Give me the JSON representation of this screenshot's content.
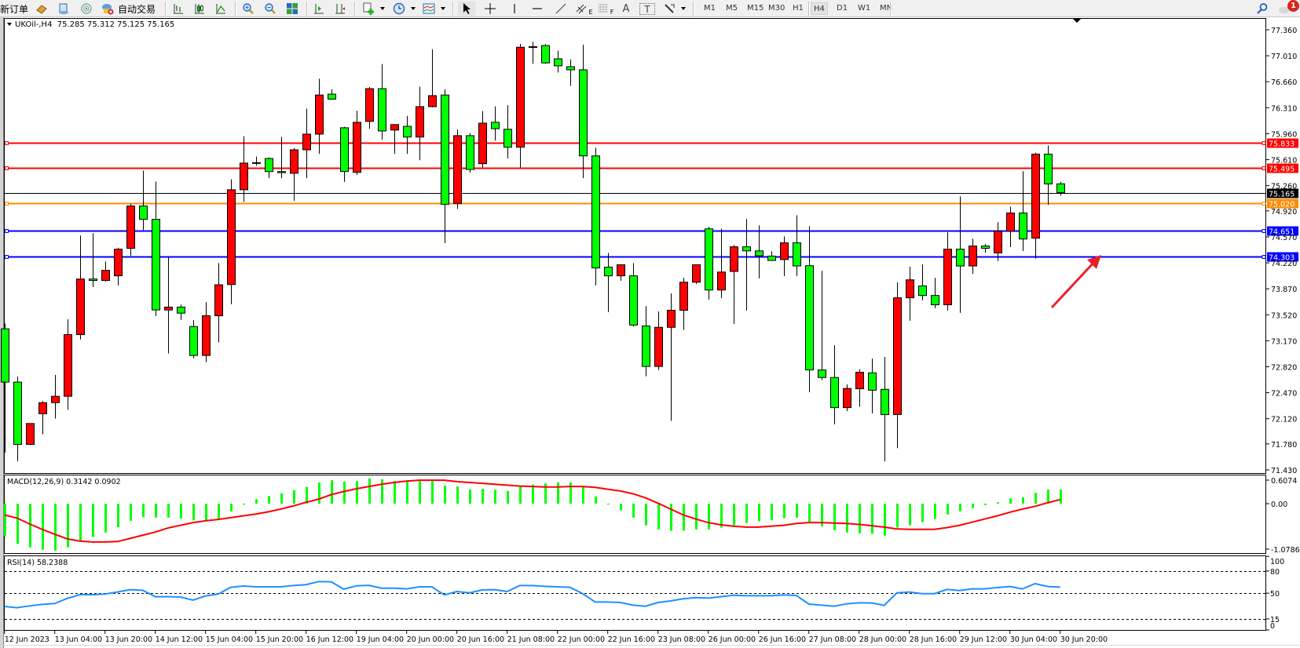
{
  "toolbar": {
    "new_order_label": "新订单",
    "autotrading_label": "自动交易",
    "timeframes": [
      "M1",
      "M5",
      "M15",
      "M30",
      "H1",
      "H4",
      "D1",
      "W1",
      "MN"
    ],
    "selected_timeframe": "H4",
    "notification_count": "1",
    "tools": {
      "equidistant_channel_suffix": "E",
      "fibonacci_suffix": "F",
      "text_tool": "A",
      "label_tool": "T"
    }
  },
  "chart": {
    "symbol_header": "UKOil-,H4  75.285 75.312 75.125 75.165",
    "colors": {
      "bull": "#ff0000",
      "bear": "#00ff00",
      "wick": "#000000",
      "macd_hist": "#00ff00",
      "macd_signal": "#ff0000",
      "rsi": "#1e90ff"
    },
    "price_axis": [
      "77.360",
      "77.010",
      "76.660",
      "76.310",
      "75.960",
      "75.610",
      "75.260",
      "74.920",
      "74.570",
      "74.220",
      "73.870",
      "73.520",
      "73.170",
      "72.820",
      "72.470",
      "72.120",
      "71.780",
      "71.430"
    ],
    "price_range": [
      71.43,
      77.36
    ],
    "horizontal_lines": [
      {
        "price": "75.833",
        "color": "#ff0000"
      },
      {
        "price": "75.495",
        "color": "#ff0000"
      },
      {
        "price": "75.165",
        "color": "#000000",
        "kind": "bid"
      },
      {
        "price": "75.020",
        "color": "#ff8c00"
      },
      {
        "price": "74.651",
        "color": "#0000ff"
      },
      {
        "price": "74.303",
        "color": "#0000ff"
      }
    ],
    "time_axis": [
      "12 Jun 2023",
      "13 Jun 04:00",
      "13 Jun 20:00",
      "14 Jun 12:00",
      "15 Jun 04:00",
      "15 Jun 20:00",
      "16 Jun 12:00",
      "19 Jun 04:00",
      "20 Jun 00:00",
      "20 Jun 16:00",
      "21 Jun 08:00",
      "22 Jun 00:00",
      "22 Jun 16:00",
      "23 Jun 08:00",
      "26 Jun 00:00",
      "26 Jun 16:00",
      "27 Jun 08:00",
      "28 Jun 00:00",
      "28 Jun 16:00",
      "29 Jun 12:00",
      "30 Jun 04:00",
      "30 Jun 20:00"
    ],
    "annotation": {
      "type": "arrow",
      "color": "#e8202a",
      "direction": "up-right"
    }
  },
  "chart_data": [
    {
      "type": "candlestick",
      "title": "UKOil-,H4",
      "ohlc_fields": [
        "open",
        "high",
        "low",
        "close"
      ],
      "ylim": [
        71.43,
        77.36
      ],
      "ohlc": [
        [
          73.331,
          73.401,
          71.664,
          72.613
        ],
        [
          72.613,
          72.687,
          71.547,
          71.774
        ],
        [
          71.774,
          72.055,
          71.763,
          72.055
        ],
        [
          72.187,
          72.355,
          71.91,
          72.336
        ],
        [
          72.336,
          72.71,
          72.121,
          72.422
        ],
        [
          72.422,
          73.46,
          72.238,
          73.253
        ],
        [
          73.253,
          74.588,
          73.187,
          74.002
        ],
        [
          74.002,
          74.619,
          73.893,
          73.983
        ],
        [
          73.983,
          74.24,
          73.967,
          74.119
        ],
        [
          74.045,
          74.424,
          73.917,
          74.404
        ],
        [
          74.416,
          75.013,
          74.315,
          74.986
        ],
        [
          74.986,
          75.462,
          74.662,
          74.806
        ],
        [
          74.806,
          75.314,
          73.503,
          73.585
        ],
        [
          73.585,
          74.299,
          72.999,
          73.624
        ],
        [
          73.624,
          73.655,
          73.452,
          73.542
        ],
        [
          73.362,
          73.448,
          72.933,
          72.972
        ],
        [
          72.972,
          73.69,
          72.882,
          73.507
        ],
        [
          73.507,
          74.217,
          73.148,
          73.924
        ],
        [
          73.928,
          75.345,
          73.663,
          75.205
        ],
        [
          75.205,
          75.927,
          75.041,
          75.564
        ],
        [
          75.566,
          75.653,
          75.529,
          75.57
        ],
        [
          75.626,
          75.642,
          75.361,
          75.45
        ],
        [
          75.45,
          75.915,
          75.361,
          75.435
        ],
        [
          75.427,
          75.767,
          75.056,
          75.743
        ],
        [
          75.743,
          76.297,
          75.361,
          75.954
        ],
        [
          75.954,
          76.7,
          75.689,
          76.481
        ],
        [
          76.493,
          76.559,
          76.418,
          76.426
        ],
        [
          76.04,
          76.055,
          75.31,
          75.45
        ],
        [
          75.439,
          76.27,
          75.404,
          76.114
        ],
        [
          76.126,
          76.59,
          76.028,
          76.567
        ],
        [
          76.567,
          76.899,
          75.88,
          75.997
        ],
        [
          76.009,
          76.083,
          75.689,
          76.083
        ],
        [
          76.059,
          76.2,
          75.689,
          75.915
        ],
        [
          75.915,
          76.594,
          75.603,
          76.325
        ],
        [
          76.325,
          77.098,
          76.313,
          76.473
        ],
        [
          76.481,
          76.559,
          74.486,
          75.009
        ],
        [
          75.021,
          76.013,
          74.947,
          75.934
        ],
        [
          75.934,
          75.97,
          75.435,
          75.478
        ],
        [
          75.556,
          76.266,
          75.505,
          76.102
        ],
        [
          76.114,
          76.329,
          75.868,
          76.028
        ],
        [
          76.02,
          76.344,
          75.626,
          75.778
        ],
        [
          75.778,
          77.168,
          75.505,
          77.125
        ],
        [
          77.13,
          77.199,
          76.902,
          77.133
        ],
        [
          77.148,
          77.168,
          76.902,
          76.914
        ],
        [
          76.969,
          77.078,
          76.785,
          76.875
        ],
        [
          76.863,
          76.961,
          76.606,
          76.821
        ],
        [
          76.821,
          77.16,
          75.361,
          75.661
        ],
        [
          75.661,
          75.771,
          73.917,
          74.151
        ],
        [
          74.162,
          74.354,
          73.557,
          74.045
        ],
        [
          74.045,
          74.194,
          73.979,
          74.194
        ],
        [
          74.045,
          74.217,
          73.362,
          73.382
        ],
        [
          73.37,
          73.636,
          72.691,
          72.824
        ],
        [
          72.824,
          73.565,
          72.777,
          73.351
        ],
        [
          73.351,
          73.807,
          72.09,
          73.581
        ],
        [
          73.581,
          74.018,
          73.315,
          73.959
        ],
        [
          73.959,
          74.194,
          73.936,
          74.194
        ],
        [
          74.678,
          74.705,
          73.725,
          73.854
        ],
        [
          73.854,
          74.682,
          73.745,
          74.096
        ],
        [
          74.104,
          74.459,
          73.397,
          74.436
        ],
        [
          74.436,
          74.81,
          73.577,
          74.381
        ],
        [
          74.381,
          74.725,
          74.01,
          74.315
        ],
        [
          74.311,
          74.377,
          74.244,
          74.252
        ],
        [
          74.264,
          74.576,
          74.041,
          74.49
        ],
        [
          74.49,
          74.861,
          74.041,
          74.178
        ],
        [
          74.182,
          74.713,
          72.476,
          72.777
        ],
        [
          72.777,
          74.112,
          72.64,
          72.675
        ],
        [
          72.675,
          73.109,
          72.043,
          72.269
        ],
        [
          72.269,
          72.582,
          72.223,
          72.527
        ],
        [
          72.523,
          72.785,
          72.281,
          72.746
        ],
        [
          72.738,
          72.929,
          72.191,
          72.504
        ],
        [
          72.515,
          72.952,
          71.543,
          72.176
        ],
        [
          72.176,
          73.956,
          71.723,
          73.749
        ],
        [
          73.749,
          74.166,
          73.44,
          73.991
        ],
        [
          73.909,
          74.198,
          73.714,
          73.78
        ],
        [
          73.78,
          74.018,
          73.608,
          73.655
        ],
        [
          73.655,
          74.631,
          73.577,
          74.404
        ],
        [
          74.404,
          75.115,
          73.546,
          74.178
        ],
        [
          74.178,
          74.545,
          74.073,
          74.447
        ],
        [
          74.447,
          74.471,
          74.358,
          74.416
        ],
        [
          74.354,
          74.767,
          74.244,
          74.646
        ],
        [
          74.646,
          74.978,
          74.432,
          74.892
        ],
        [
          74.892,
          75.454,
          74.381,
          74.541
        ],
        [
          74.553,
          75.704,
          74.276,
          75.685
        ],
        [
          75.685,
          75.802,
          75.002,
          75.283
        ],
        [
          75.285,
          75.312,
          75.125,
          75.165
        ]
      ]
    },
    {
      "type": "bar+line",
      "title": "MACD(12,26,9) 0.3142 0.0902",
      "axis_labels": [
        "0.6074",
        "0.00",
        "-1.0786"
      ],
      "ylim": [
        -1.0786,
        0.6074
      ],
      "histogram": [
        -0.71,
        -0.89,
        -0.97,
        -1.02,
        -1.04,
        -0.97,
        -0.83,
        -0.74,
        -0.64,
        -0.52,
        -0.38,
        -0.3,
        -0.31,
        -0.31,
        -0.33,
        -0.37,
        -0.37,
        -0.34,
        -0.17,
        -0.02,
        0.1,
        0.17,
        0.23,
        0.3,
        0.37,
        0.47,
        0.52,
        0.49,
        0.5,
        0.56,
        0.54,
        0.5,
        0.5,
        0.5,
        0.5,
        0.4,
        0.38,
        0.31,
        0.33,
        0.31,
        0.28,
        0.38,
        0.42,
        0.45,
        0.47,
        0.47,
        0.37,
        0.16,
        -0.02,
        -0.15,
        -0.31,
        -0.48,
        -0.57,
        -0.6,
        -0.6,
        -0.57,
        -0.57,
        -0.53,
        -0.48,
        -0.43,
        -0.39,
        -0.37,
        -0.32,
        -0.31,
        -0.43,
        -0.5,
        -0.59,
        -0.64,
        -0.66,
        -0.67,
        -0.71,
        -0.53,
        -0.48,
        -0.41,
        -0.34,
        -0.24,
        -0.17,
        -0.1,
        -0.03,
        0.03,
        0.12,
        0.14,
        0.24,
        0.31,
        0.3142
      ],
      "signal": [
        -0.25,
        -0.32,
        -0.45,
        -0.57,
        -0.68,
        -0.78,
        -0.83,
        -0.85,
        -0.85,
        -0.84,
        -0.77,
        -0.7,
        -0.63,
        -0.54,
        -0.48,
        -0.42,
        -0.38,
        -0.35,
        -0.31,
        -0.27,
        -0.23,
        -0.18,
        -0.12,
        -0.05,
        0.03,
        0.1,
        0.2,
        0.27,
        0.33,
        0.38,
        0.43,
        0.47,
        0.5,
        0.52,
        0.52,
        0.52,
        0.49,
        0.47,
        0.45,
        0.43,
        0.41,
        0.39,
        0.38,
        0.37,
        0.37,
        0.38,
        0.38,
        0.36,
        0.32,
        0.28,
        0.22,
        0.13,
        0.01,
        -0.12,
        -0.25,
        -0.34,
        -0.42,
        -0.47,
        -0.5,
        -0.52,
        -0.52,
        -0.5,
        -0.48,
        -0.44,
        -0.42,
        -0.42,
        -0.43,
        -0.44,
        -0.46,
        -0.49,
        -0.52,
        -0.56,
        -0.57,
        -0.57,
        -0.57,
        -0.53,
        -0.48,
        -0.41,
        -0.34,
        -0.27,
        -0.19,
        -0.12,
        -0.06,
        0.02,
        0.0902
      ]
    },
    {
      "type": "line",
      "title": "RSI(14) 58.2388",
      "axis_labels": [
        "100",
        "80",
        "50",
        "15",
        "0"
      ],
      "levels": [
        80,
        50,
        15
      ],
      "ylim": [
        0,
        100
      ],
      "values": [
        32.0,
        30.2,
        32.7,
        34.8,
        35.9,
        42.9,
        47.9,
        47.9,
        48.7,
        51.5,
        54.7,
        54.0,
        45.1,
        45.1,
        44.7,
        40.5,
        46.2,
        48.7,
        57.9,
        59.7,
        58.6,
        58.6,
        58.6,
        60.4,
        61.5,
        65.7,
        65.4,
        55.4,
        60.0,
        60.6,
        56.8,
        56.8,
        55.8,
        58.6,
        58.6,
        47.6,
        52.2,
        50.4,
        54.3,
        54.7,
        52.2,
        60.4,
        60.4,
        59.3,
        58.6,
        57.9,
        49.3,
        38.0,
        38.0,
        37.3,
        33.7,
        32.3,
        37.3,
        39.4,
        42.3,
        44.0,
        43.3,
        45.1,
        47.2,
        46.5,
        46.5,
        46.5,
        47.6,
        46.9,
        35.2,
        33.7,
        32.3,
        35.5,
        36.9,
        36.6,
        33.4,
        50.4,
        51.5,
        49.3,
        49.3,
        55.1,
        53.6,
        55.8,
        55.8,
        57.6,
        59.0,
        55.8,
        62.9,
        59.0,
        58.2388
      ]
    }
  ]
}
